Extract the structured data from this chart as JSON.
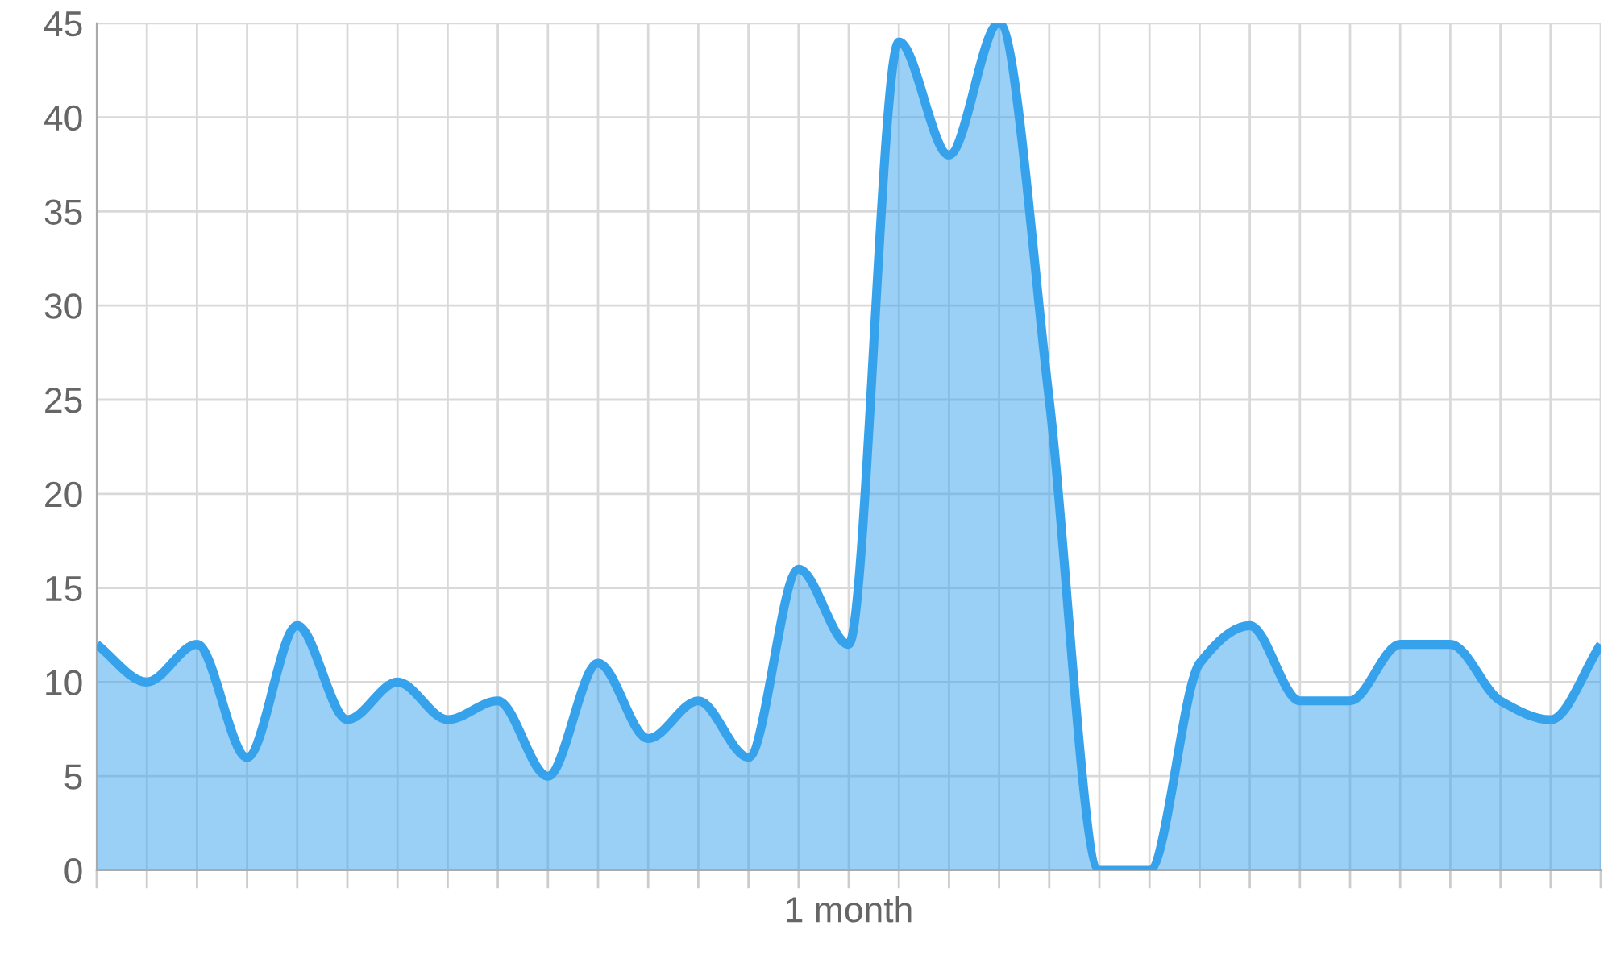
{
  "chart_data": {
    "type": "area",
    "categories": [
      null,
      null,
      null,
      null,
      null,
      null,
      null,
      null,
      null,
      null,
      null,
      null,
      null,
      null,
      null,
      "1 month",
      null,
      null,
      null,
      null,
      null,
      null,
      null,
      null,
      null,
      null,
      null,
      null,
      null,
      null,
      null
    ],
    "series": [
      {
        "color": "#36a2eb",
        "values": [
          12,
          10,
          12,
          6,
          13,
          8,
          10,
          8,
          9,
          5,
          11,
          7,
          9,
          6,
          16,
          12,
          44,
          38,
          45,
          25,
          0,
          0,
          11,
          13,
          9,
          9,
          12,
          12,
          9,
          8,
          12
        ]
      }
    ],
    "ylim": [
      0,
      45
    ],
    "yticks": [
      0,
      5,
      10,
      15,
      20,
      25,
      30,
      35,
      40,
      45
    ],
    "grid": true,
    "marker": "none",
    "line_style": "solid"
  }
}
